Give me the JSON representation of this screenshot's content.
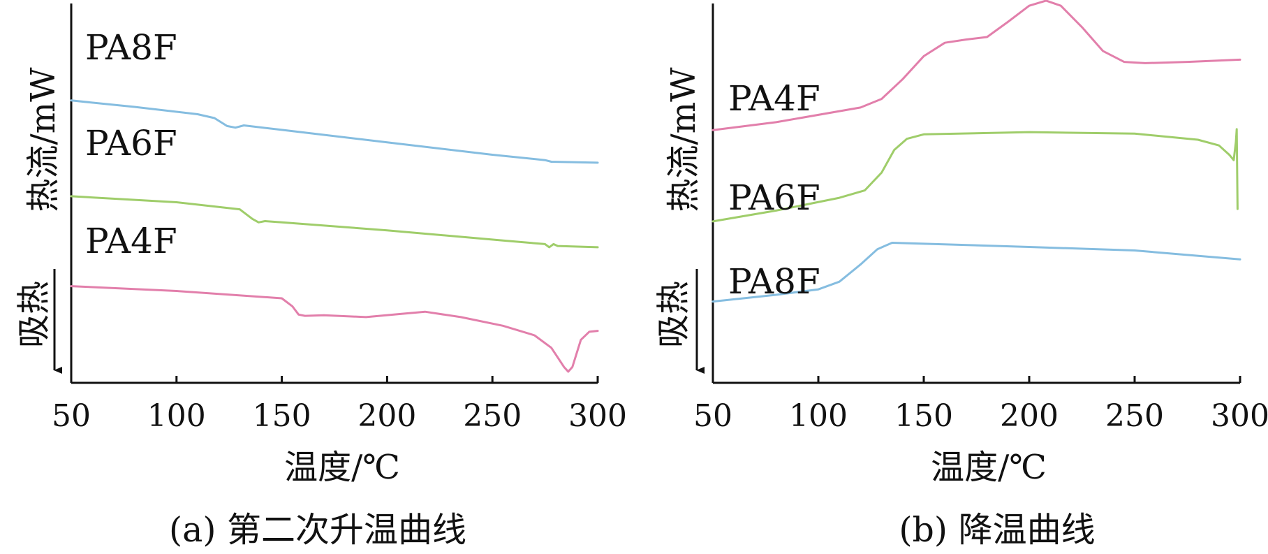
{
  "chart_data": [
    {
      "id": "a",
      "type": "line",
      "caption": "(a) 第二次升温曲线",
      "xlabel": "温度/℃",
      "ylabel": "热流/mW",
      "endotherm_label": "吸热",
      "endotherm_arrow": "down",
      "xlim": [
        50,
        300
      ],
      "xticks": [
        50,
        100,
        150,
        200,
        250,
        300
      ],
      "ytick_labels": false,
      "grid": false,
      "colors": {
        "PA8F": "#85bde0",
        "PA6F": "#9fcd6a",
        "PA4F": "#e27fab"
      },
      "series": [
        {
          "name": "PA8F",
          "color": "#85bde0",
          "x": [
            50,
            80,
            110,
            118,
            124,
            128,
            132,
            150,
            200,
            250,
            275,
            278,
            300
          ],
          "y": [
            88.5,
            86.5,
            84.2,
            83.0,
            80.5,
            80.0,
            80.7,
            79.3,
            75.4,
            71.5,
            69.8,
            69.3,
            69.0
          ]
        },
        {
          "name": "PA6F",
          "color": "#9fcd6a",
          "x": [
            50,
            100,
            130,
            136,
            139,
            142,
            150,
            200,
            255,
            275,
            277,
            279,
            281,
            300
          ],
          "y": [
            58.5,
            56.6,
            54.4,
            51.4,
            50.3,
            50.7,
            50.3,
            47.8,
            44.6,
            43.5,
            42.5,
            43.5,
            42.9,
            42.5
          ]
        },
        {
          "name": "PA4F",
          "color": "#e27fab",
          "x": [
            50,
            100,
            150,
            155,
            158,
            161,
            170,
            190,
            205,
            218,
            235,
            255,
            270,
            278,
            284,
            286,
            288,
            292,
            296,
            300
          ],
          "y": [
            30.3,
            28.8,
            26.5,
            24.0,
            21.4,
            21.0,
            21.2,
            20.6,
            21.5,
            22.3,
            20.6,
            17.9,
            14.9,
            11.0,
            5.0,
            3.5,
            5.0,
            13.5,
            16.0,
            16.3
          ]
        }
      ],
      "series_label_order": [
        "PA8F",
        "PA6F",
        "PA4F"
      ]
    },
    {
      "id": "b",
      "type": "line",
      "caption": "(b) 降温曲线",
      "xlabel": "温度/℃",
      "ylabel": "热流/mW",
      "endotherm_label": "吸热",
      "endotherm_arrow": "down",
      "xlim": [
        50,
        300
      ],
      "xticks": [
        50,
        100,
        150,
        200,
        250,
        300
      ],
      "ytick_labels": false,
      "grid": false,
      "colors": {
        "PA4F": "#e27fab",
        "PA6F": "#9fcd6a",
        "PA8F": "#85bde0"
      },
      "series": [
        {
          "name": "PA4F",
          "color": "#e27fab",
          "x": [
            50,
            80,
            120,
            130,
            140,
            150,
            160,
            170,
            180,
            190,
            200,
            208,
            215,
            225,
            235,
            245,
            255,
            275,
            300
          ],
          "y": [
            79.2,
            81.7,
            86.3,
            89.0,
            95.2,
            102.4,
            106.6,
            107.6,
            108.4,
            113.2,
            118.2,
            119.8,
            118.2,
            111.5,
            104.0,
            100.6,
            100.2,
            100.6,
            101.3
          ]
        },
        {
          "name": "PA6F",
          "color": "#9fcd6a",
          "x": [
            50,
            80,
            110,
            122,
            130,
            136,
            142,
            150,
            200,
            250,
            280,
            290,
            295,
            297,
            298,
            298.4,
            298.8
          ],
          "y": [
            50.6,
            54.0,
            58.0,
            60.3,
            65.9,
            73.0,
            76.5,
            77.9,
            78.6,
            78.1,
            76.2,
            74.4,
            71.4,
            69.8,
            75.5,
            79.5,
            54.5
          ]
        },
        {
          "name": "PA8F",
          "color": "#85bde0",
          "x": [
            50,
            80,
            100,
            110,
            120,
            128,
            135,
            150,
            200,
            250,
            300
          ],
          "y": [
            25.5,
            27.6,
            29.3,
            31.7,
            37.1,
            41.9,
            43.9,
            43.6,
            42.6,
            41.5,
            38.7
          ]
        }
      ],
      "series_label_order": [
        "PA4F",
        "PA6F",
        "PA8F"
      ]
    }
  ]
}
